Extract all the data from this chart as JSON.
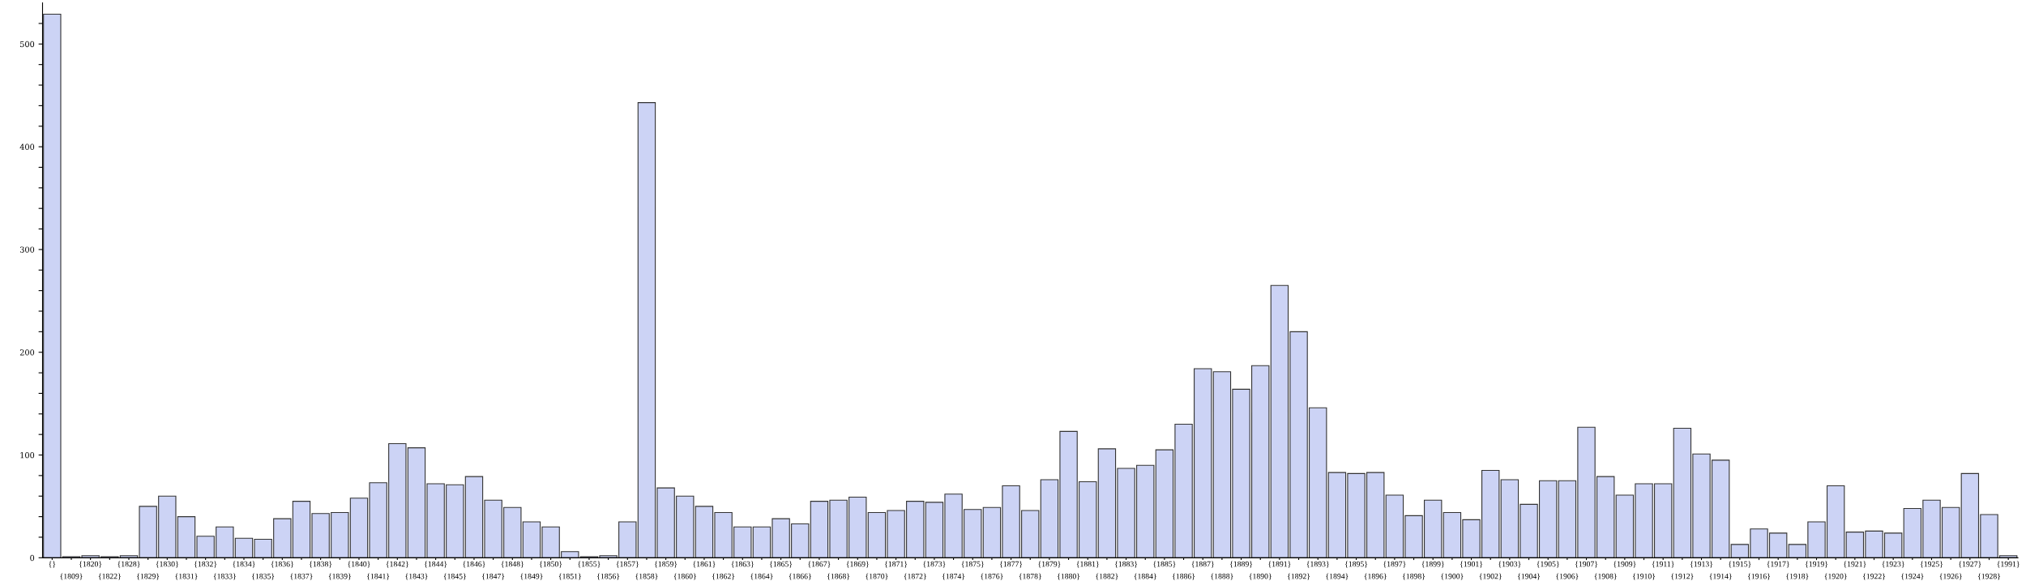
{
  "chart_data": {
    "type": "bar",
    "color": "#ccd3f5",
    "categories": [
      "{}",
      "{1809}",
      "{1820}",
      "{1822}",
      "{1828}",
      "{1829}",
      "{1830}",
      "{1831}",
      "{1832}",
      "{1833}",
      "{1834}",
      "{1835}",
      "{1836}",
      "{1837}",
      "{1838}",
      "{1839}",
      "{1840}",
      "{1841}",
      "{1842}",
      "{1843}",
      "{1844}",
      "{1845}",
      "{1846}",
      "{1847}",
      "{1848}",
      "{1849}",
      "{1850}",
      "{1851}",
      "{1855}",
      "{1856}",
      "{1857}",
      "{1858}",
      "{1859}",
      "{1860}",
      "{1861}",
      "{1862}",
      "{1863}",
      "{1864}",
      "{1865}",
      "{1866}",
      "{1867}",
      "{1868}",
      "{1869}",
      "{1870}",
      "{1871}",
      "{1872}",
      "{1873}",
      "{1874}",
      "{1875}",
      "{1876}",
      "{1877}",
      "{1878}",
      "{1879}",
      "{1880}",
      "{1881}",
      "{1882}",
      "{1883}",
      "{1884}",
      "{1885}",
      "{1886}",
      "{1887}",
      "{1888}",
      "{1889}",
      "{1890}",
      "{1891}",
      "{1892}",
      "{1893}",
      "{1894}",
      "{1895}",
      "{1896}",
      "{1897}",
      "{1898}",
      "{1899}",
      "{1900}",
      "{1901}",
      "{1902}",
      "{1903}",
      "{1904}",
      "{1905}",
      "{1906}",
      "{1907}",
      "{1908}",
      "{1909}",
      "{1910}",
      "{1911}",
      "{1912}",
      "{1913}",
      "{1914}",
      "{1915}",
      "{1916}",
      "{1917}",
      "{1918}",
      "{1919}",
      "{1920}",
      "{1921}",
      "{1922}",
      "{1923}",
      "{1924}",
      "{1925}",
      "{1926}",
      "{1927}",
      "{1928}",
      "{1991}"
    ],
    "values": [
      529,
      1,
      2,
      1,
      2,
      50,
      60,
      40,
      21,
      30,
      19,
      18,
      38,
      55,
      43,
      44,
      58,
      73,
      111,
      107,
      72,
      71,
      79,
      56,
      49,
      35,
      30,
      6,
      1,
      2,
      35,
      443,
      68,
      60,
      50,
      44,
      30,
      30,
      38,
      33,
      55,
      56,
      59,
      44,
      46,
      55,
      54,
      62,
      47,
      49,
      70,
      46,
      76,
      123,
      74,
      106,
      87,
      90,
      105,
      130,
      184,
      181,
      164,
      187,
      265,
      220,
      146,
      83,
      82,
      83,
      61,
      41,
      56,
      44,
      37,
      85,
      76,
      52,
      75,
      75,
      127,
      79,
      61,
      72,
      72,
      126,
      101,
      95,
      13,
      28,
      24,
      13,
      35,
      70,
      25,
      26,
      24,
      48,
      56,
      49,
      82,
      42,
      2
    ],
    "ylim": [
      0,
      540
    ],
    "yticks": [
      0,
      {
        "value": 20,
        "label": null
      },
      {
        "value": 40,
        "label": null
      },
      {
        "value": 60,
        "label": null
      },
      {
        "value": 80,
        "label": null
      },
      100,
      {
        "value": 120,
        "label": null
      },
      {
        "value": 140,
        "label": null
      },
      {
        "value": 160,
        "label": null
      },
      {
        "value": 180,
        "label": null
      },
      200,
      {
        "value": 220,
        "label": null
      },
      {
        "value": 240,
        "label": null
      },
      {
        "value": 260,
        "label": null
      },
      {
        "value": 280,
        "label": null
      },
      300,
      {
        "value": 320,
        "label": null
      },
      {
        "value": 340,
        "label": null
      },
      {
        "value": 360,
        "label": null
      },
      {
        "value": 380,
        "label": null
      },
      400,
      {
        "value": 420,
        "label": null
      },
      {
        "value": 440,
        "label": null
      },
      {
        "value": 460,
        "label": null
      },
      {
        "value": 480,
        "label": null
      },
      500,
      {
        "value": 520,
        "label": null
      }
    ],
    "grid": false
  }
}
